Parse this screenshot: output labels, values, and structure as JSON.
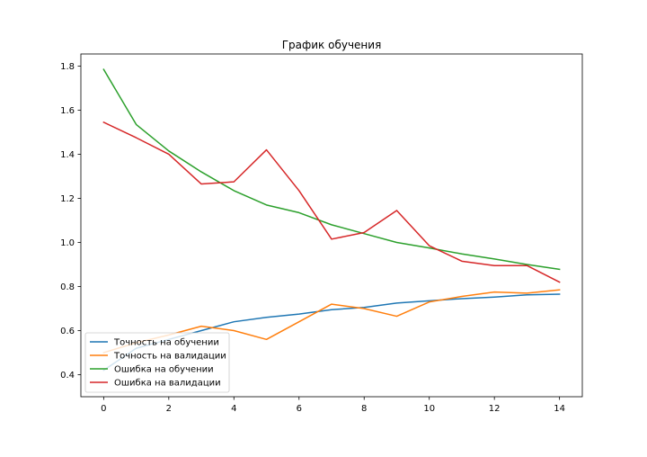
{
  "chart_data": {
    "type": "line",
    "title": "График обучения",
    "xlabel": "",
    "ylabel": "",
    "x": [
      0,
      1,
      2,
      3,
      4,
      5,
      6,
      7,
      8,
      9,
      10,
      11,
      12,
      13,
      14
    ],
    "xlim": [
      -0.7,
      14.7
    ],
    "ylim": [
      0.3,
      1.855
    ],
    "xticks": [
      0,
      2,
      4,
      6,
      8,
      10,
      12,
      14
    ],
    "yticks": [
      0.4,
      0.6,
      0.8,
      1.0,
      1.2,
      1.4,
      1.6,
      1.8
    ],
    "grid": false,
    "legend_position": "lower-left",
    "series": [
      {
        "name": "Точность на обучении",
        "color": "#1f77b4",
        "values": [
          0.42,
          0.52,
          0.56,
          0.6,
          0.64,
          0.66,
          0.675,
          0.695,
          0.705,
          0.725,
          0.735,
          0.745,
          0.752,
          0.762,
          0.765
        ]
      },
      {
        "name": "Точность на валидации",
        "color": "#ff7f0e",
        "values": [
          0.5,
          0.545,
          0.58,
          0.62,
          0.6,
          0.56,
          0.64,
          0.72,
          0.7,
          0.665,
          0.73,
          0.755,
          0.775,
          0.77,
          0.785
        ]
      },
      {
        "name": "Ошибка на обучении",
        "color": "#2ca02c",
        "values": [
          1.785,
          1.535,
          1.415,
          1.32,
          1.235,
          1.17,
          1.135,
          1.08,
          1.04,
          1.0,
          0.975,
          0.948,
          0.925,
          0.9,
          0.878
        ]
      },
      {
        "name": "Ошибка на валидации",
        "color": "#d62728",
        "values": [
          1.545,
          1.475,
          1.4,
          1.265,
          1.275,
          1.42,
          1.235,
          1.015,
          1.045,
          1.145,
          0.985,
          0.915,
          0.895,
          0.895,
          0.82
        ]
      }
    ]
  }
}
